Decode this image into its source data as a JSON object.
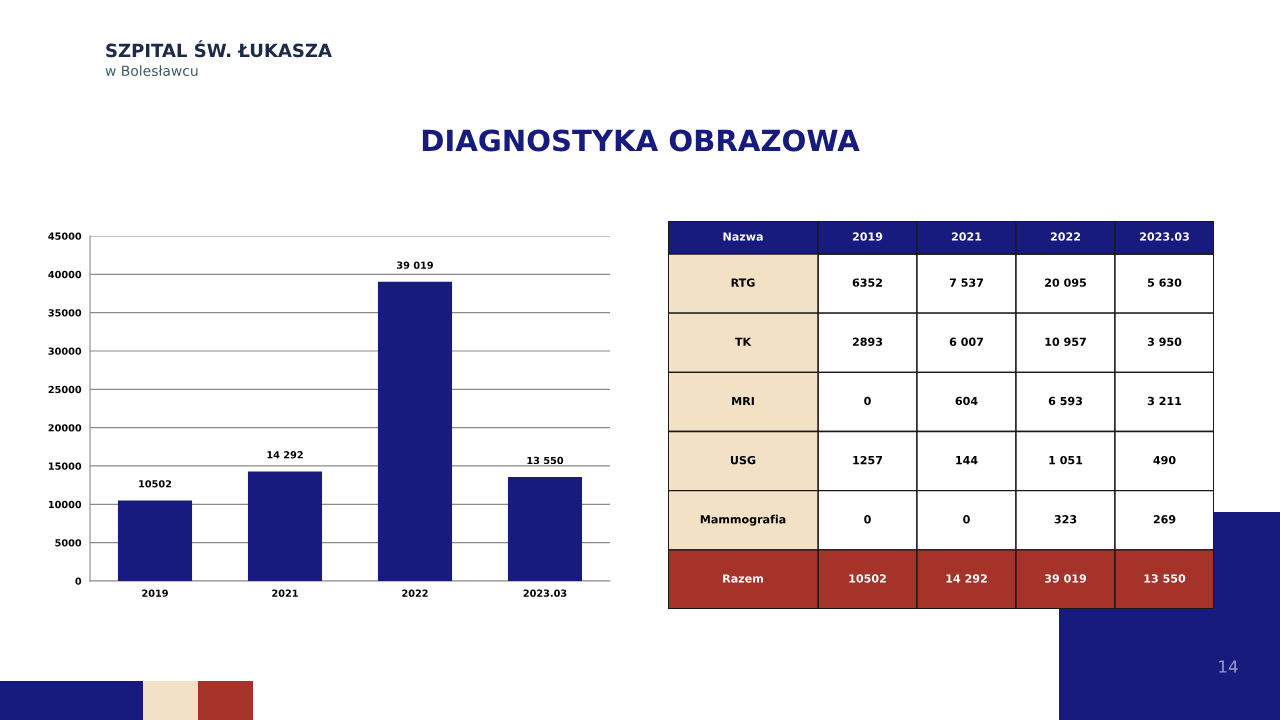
{
  "chart_data": [
    {
      "type": "bar",
      "title": "DIAGNOSTYKA OBRAZOWA",
      "categories": [
        "2019",
        "2021",
        "2022",
        "2023.03"
      ],
      "values": [
        10502,
        14292,
        39019,
        13550
      ],
      "color": "#181b7e",
      "value_labels": [
        "10502",
        "14 292",
        "39 019",
        "13 550"
      ],
      "ylim": [
        0,
        45000
      ],
      "yticks": [
        0,
        5000,
        10000,
        15000,
        20000,
        25000,
        30000,
        35000,
        40000,
        45000
      ],
      "grid": "y",
      "annotations": [
        "SZPITAL ŚW. ŁUKASZA",
        "w Bolesławcu",
        "14"
      ]
    },
    {
      "type": "heatmap",
      "ylabel": "Nazwa",
      "categories": [
        "2019",
        "2021",
        "2022",
        "2023.03"
      ],
      "y_categories": [
        "RTG",
        "TK",
        "MRI",
        "USG",
        "Mammografia",
        "Razem"
      ],
      "cells": [
        [
          6352,
          7537,
          20095,
          5630
        ],
        [
          2893,
          6007,
          10957,
          3950
        ],
        [
          0,
          604,
          6593,
          3211
        ],
        [
          1257,
          144,
          1051,
          490
        ],
        [
          0,
          0,
          323,
          269
        ],
        [
          10502,
          14292,
          39019,
          13550
        ]
      ],
      "cell_labels": [
        [
          "6352",
          "7 537",
          "20 095",
          "5 630"
        ],
        [
          "2893",
          "6 007",
          "10 957",
          "3 950"
        ],
        [
          "0",
          "604",
          "6 593",
          "3 211"
        ],
        [
          "1257",
          "144",
          "1 051",
          "490"
        ],
        [
          "0",
          "0",
          "323",
          "269"
        ],
        [
          "10502",
          "14 292",
          "39 019",
          "13 550"
        ]
      ],
      "colors": [
        "#ffffff",
        "#ffffff",
        "#ffffff",
        "#ffffff",
        "#ffffff",
        "#a5332a"
      ]
    }
  ]
}
